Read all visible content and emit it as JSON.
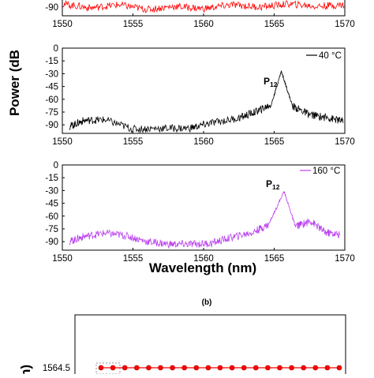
{
  "chart_data": [
    {
      "type": "line",
      "panel": "top (cropped)",
      "xlim": [
        1550,
        1570
      ],
      "visible_y_ticks": [
        -90
      ],
      "x_ticks": [
        "1550",
        "1555",
        "1560",
        "1565",
        "1570"
      ],
      "series": [
        {
          "color": "#ff0000",
          "x": [
            1550,
            1552,
            1554,
            1556,
            1558,
            1560,
            1562,
            1564,
            1566,
            1568,
            1570
          ],
          "values": [
            -85,
            -90,
            -86,
            -92,
            -88,
            -91,
            -86,
            -89,
            -85,
            -88,
            -86
          ]
        }
      ]
    },
    {
      "type": "line",
      "panel": "middle",
      "xlim": [
        1550,
        1570
      ],
      "ylim": [
        -100,
        0
      ],
      "y_ticks": [
        "0",
        "-15",
        "-30",
        "-45",
        "-60",
        "-75",
        "-90"
      ],
      "x_ticks": [
        "1550",
        "1555",
        "1560",
        "1565",
        "1570"
      ],
      "annotation": {
        "main": "P",
        "sub": "12",
        "x": 1565.5
      },
      "series": [
        {
          "name": "40 °C",
          "color": "#000000",
          "x": [
            1550.5,
            1551.5,
            1553.0,
            1555.0,
            1557.0,
            1559.0,
            1560.5,
            1562.5,
            1563.8,
            1564.8,
            1565.5,
            1566.3,
            1567.5,
            1568.9,
            1569.9
          ],
          "values": [
            -92,
            -85,
            -84,
            -95,
            -94,
            -94,
            -88,
            -82,
            -74,
            -66,
            -27,
            -68,
            -78,
            -82,
            -86
          ]
        }
      ]
    },
    {
      "type": "line",
      "panel": "bottom",
      "xlim": [
        1550,
        1570
      ],
      "ylim": [
        -100,
        0
      ],
      "y_ticks": [
        "0",
        "-15",
        "-30",
        "-45",
        "-60",
        "-75",
        "-90"
      ],
      "x_ticks": [
        "1550",
        "1555",
        "1560",
        "1565",
        "1570"
      ],
      "xlabel": "Wavelength (nm)",
      "annotation": {
        "main": "P",
        "sub": "12",
        "x": 1565.7
      },
      "series": [
        {
          "name": "160 °C",
          "color": "#bb44ee",
          "x": [
            1550.5,
            1551.5,
            1553.0,
            1554.5,
            1556.0,
            1557.5,
            1559.0,
            1560.5,
            1562.0,
            1563.5,
            1564.6,
            1565.7,
            1566.5,
            1567.6,
            1568.6,
            1569.7
          ],
          "values": [
            -90,
            -84,
            -80,
            -83,
            -90,
            -93,
            -93,
            -92,
            -85,
            -79,
            -70,
            -31,
            -72,
            -66,
            -79,
            -82
          ]
        }
      ]
    },
    {
      "type": "scatter",
      "panel": "(b) (cropped)",
      "title": "(b)",
      "visible_y_ticks": [
        "1564.5"
      ],
      "series": [
        {
          "color": "#ff0000",
          "marker": "circle",
          "values": [
            1564.5,
            1564.5,
            1564.5,
            1564.5,
            1564.5,
            1564.5,
            1564.5,
            1564.5,
            1564.5,
            1564.5,
            1564.5,
            1564.5,
            1564.5,
            1564.5,
            1564.5,
            1564.5,
            1564.5,
            1564.5,
            1564.5,
            1564.5,
            1564.5
          ]
        }
      ]
    }
  ],
  "shared": {
    "ylabel": "Power (dB",
    "partial_ylabel_b": "n)"
  }
}
